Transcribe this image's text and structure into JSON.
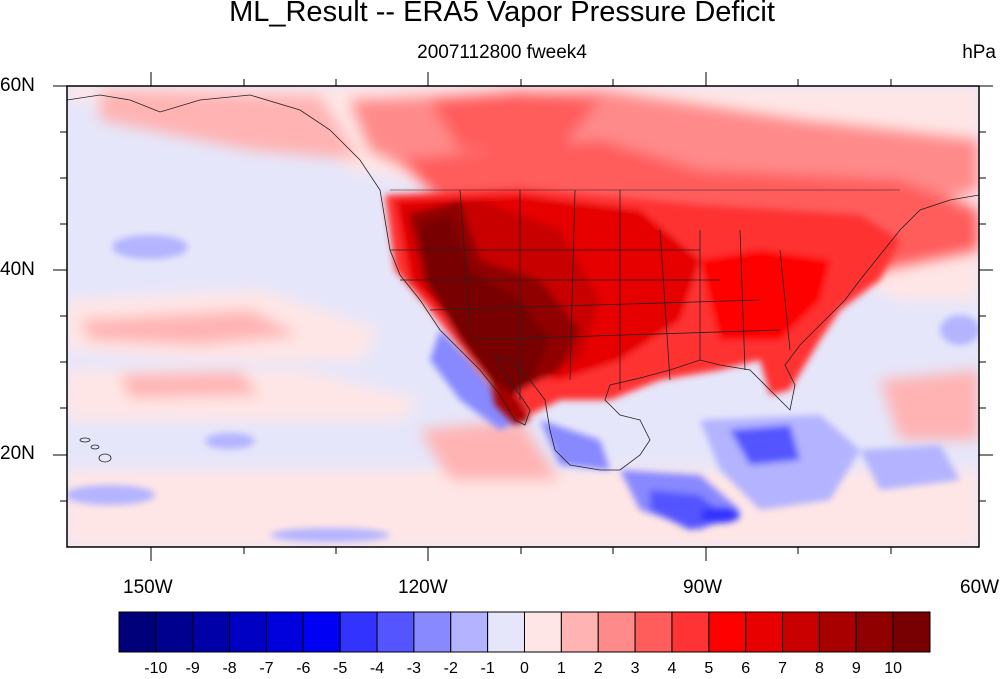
{
  "title": "ML_Result -- ERA5 Vapor Pressure Deficit",
  "subtitle": "2007112800 fweek4",
  "units": "hPa",
  "lat_labels": [
    "60N",
    "40N",
    "20N"
  ],
  "lon_labels": [
    "150W",
    "120W",
    "90W",
    "60W"
  ],
  "colorbar": {
    "labels": [
      "-10",
      "-9",
      "-8",
      "-7",
      "-6",
      "-5",
      "-4",
      "-3",
      "-2",
      "-1",
      "0",
      "1",
      "2",
      "3",
      "4",
      "5",
      "6",
      "7",
      "8",
      "9",
      "10"
    ],
    "colors": [
      "#00007a",
      "#00008f",
      "#0000a8",
      "#0000c4",
      "#0000dd",
      "#0000f5",
      "#3333ff",
      "#5555ff",
      "#8888ff",
      "#b3b3ff",
      "#e6e6fa",
      "#ffe6e6",
      "#ffb3b3",
      "#ff8a8a",
      "#ff5c5c",
      "#ff3333",
      "#ff0000",
      "#e60000",
      "#c80000",
      "#a80000",
      "#900000",
      "#780000"
    ]
  },
  "map": {
    "lon_range": [
      -160,
      -60
    ],
    "lat_range": [
      10,
      60
    ]
  }
}
